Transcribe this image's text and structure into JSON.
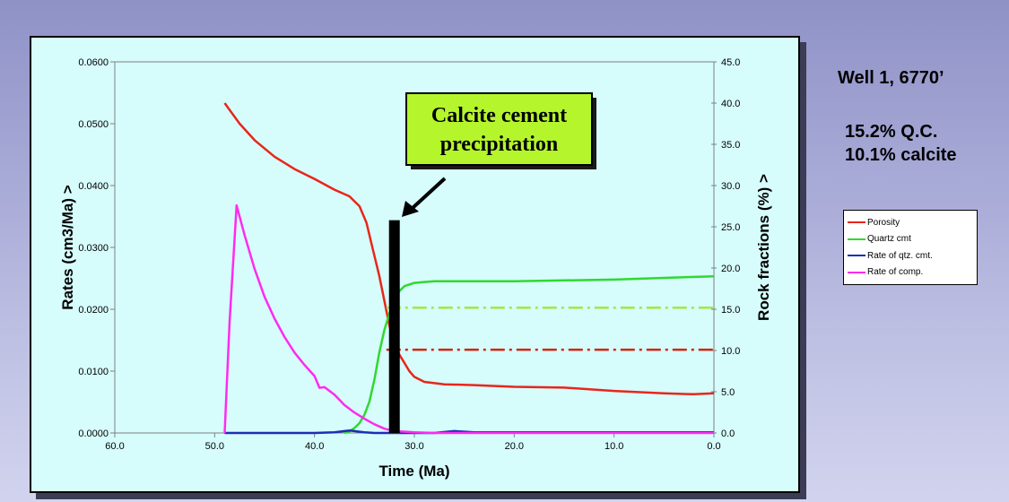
{
  "right_panel": {
    "title": "Well 1, 6770’",
    "line1": "15.2% Q.C.",
    "line2": "10.1% calcite"
  },
  "legend": [
    {
      "label": "Porosity",
      "color": "#e8261a"
    },
    {
      "label": "Quartz cmt",
      "color": "#2fd92f"
    },
    {
      "label": "Rate of qtz. cmt.",
      "color": "#1a2fb4"
    },
    {
      "label": "Rate of comp.",
      "color": "#ff2bf0"
    }
  ],
  "annotation": {
    "line1": "Calcite cement",
    "line2": "precipitation",
    "box_color": "#b4f52c"
  },
  "chart_data": {
    "type": "line",
    "xlabel": "Time (Ma)",
    "ylabel": "Rates (cm3/Ma) >",
    "y2label": "Rock fractions (%) >",
    "xlim": [
      60,
      0
    ],
    "ylim": [
      0,
      0.06
    ],
    "y2lim": [
      0,
      45
    ],
    "x_ticks": [
      "60.0",
      "50.0",
      "40.0",
      "30.0",
      "20.0",
      "10.0",
      "0.0"
    ],
    "y_ticks": [
      "0.0000",
      "0.0100",
      "0.0200",
      "0.0300",
      "0.0400",
      "0.0500",
      "0.0600"
    ],
    "y2_ticks": [
      "0.0",
      "5.0",
      "10.0",
      "15.0",
      "20.0",
      "25.0",
      "30.0",
      "35.0",
      "40.0",
      "45.0"
    ],
    "series": [
      {
        "name": "Porosity",
        "axis": "right",
        "color": "#e8261a",
        "x": [
          49,
          47.5,
          46,
          44,
          42,
          40,
          38,
          36.5,
          35.5,
          34.8,
          34.2,
          33.5,
          33,
          32.5,
          32,
          31.5,
          31,
          30.5,
          30,
          29,
          27,
          24,
          20,
          15,
          10,
          5,
          2,
          0
        ],
        "y": [
          40,
          37.5,
          35.5,
          33.5,
          32,
          30.8,
          29.5,
          28.7,
          27.5,
          25.5,
          22.5,
          19,
          16,
          13,
          11,
          9.5,
          8.5,
          7.5,
          6.8,
          6.2,
          5.9,
          5.8,
          5.6,
          5.5,
          5.1,
          4.8,
          4.7,
          4.8
        ]
      },
      {
        "name": "Quartz cmt",
        "axis": "right",
        "color": "#2fd92f",
        "x": [
          37,
          36.5,
          36,
          35.5,
          35,
          34.5,
          34,
          33.5,
          33,
          32.5,
          32,
          31.5,
          31,
          30,
          29,
          28,
          26,
          20,
          10,
          5,
          0
        ],
        "y": [
          0,
          0.2,
          0.6,
          1.2,
          2.2,
          3.8,
          6.5,
          9.8,
          12.5,
          14.5,
          16.2,
          17.2,
          17.8,
          18.2,
          18.3,
          18.4,
          18.4,
          18.4,
          18.6,
          18.8,
          19
        ]
      },
      {
        "name": "Rate of qtz. cmt.",
        "axis": "left",
        "color": "#1a2fb4",
        "x": [
          49,
          40,
          38,
          37,
          36.5,
          36,
          35.5,
          35,
          34,
          33,
          32.5,
          32,
          30,
          28,
          26,
          24,
          20,
          10,
          0
        ],
        "y": [
          0,
          0,
          0.0001,
          0.0003,
          0.0004,
          0.0003,
          0.0002,
          0.0001,
          0,
          0,
          0,
          0,
          0,
          0,
          0.0003,
          0.0001,
          0.0001,
          0.0001,
          0.0001
        ]
      },
      {
        "name": "Rate of comp.",
        "axis": "left",
        "color": "#ff2bf0",
        "x": [
          49,
          48.5,
          47.8,
          47,
          46,
          45,
          44,
          43,
          42,
          41,
          40,
          39.5,
          39,
          38,
          37,
          36,
          35,
          34,
          33,
          32,
          30,
          28,
          24,
          20,
          10,
          0
        ],
        "y": [
          0,
          0.018,
          0.0368,
          0.032,
          0.0265,
          0.022,
          0.0185,
          0.0155,
          0.013,
          0.011,
          0.0092,
          0.0073,
          0.0074,
          0.0062,
          0.0045,
          0.0033,
          0.0023,
          0.0014,
          0.0007,
          0.0003,
          0.0001,
          0,
          0,
          0,
          0,
          0
        ]
      },
      {
        "name": "",
        "axis": "right",
        "color": "#a4e83c",
        "dashed": true,
        "x": [
          32.8,
          0
        ],
        "y": [
          15.2,
          15.2
        ]
      },
      {
        "name": "",
        "axis": "right",
        "color": "#d4240f",
        "dashed": true,
        "x": [
          32.8,
          0
        ],
        "y": [
          10.1,
          10.1
        ]
      }
    ],
    "event_bar": {
      "x": 32,
      "y_top": 0.0344
    }
  }
}
